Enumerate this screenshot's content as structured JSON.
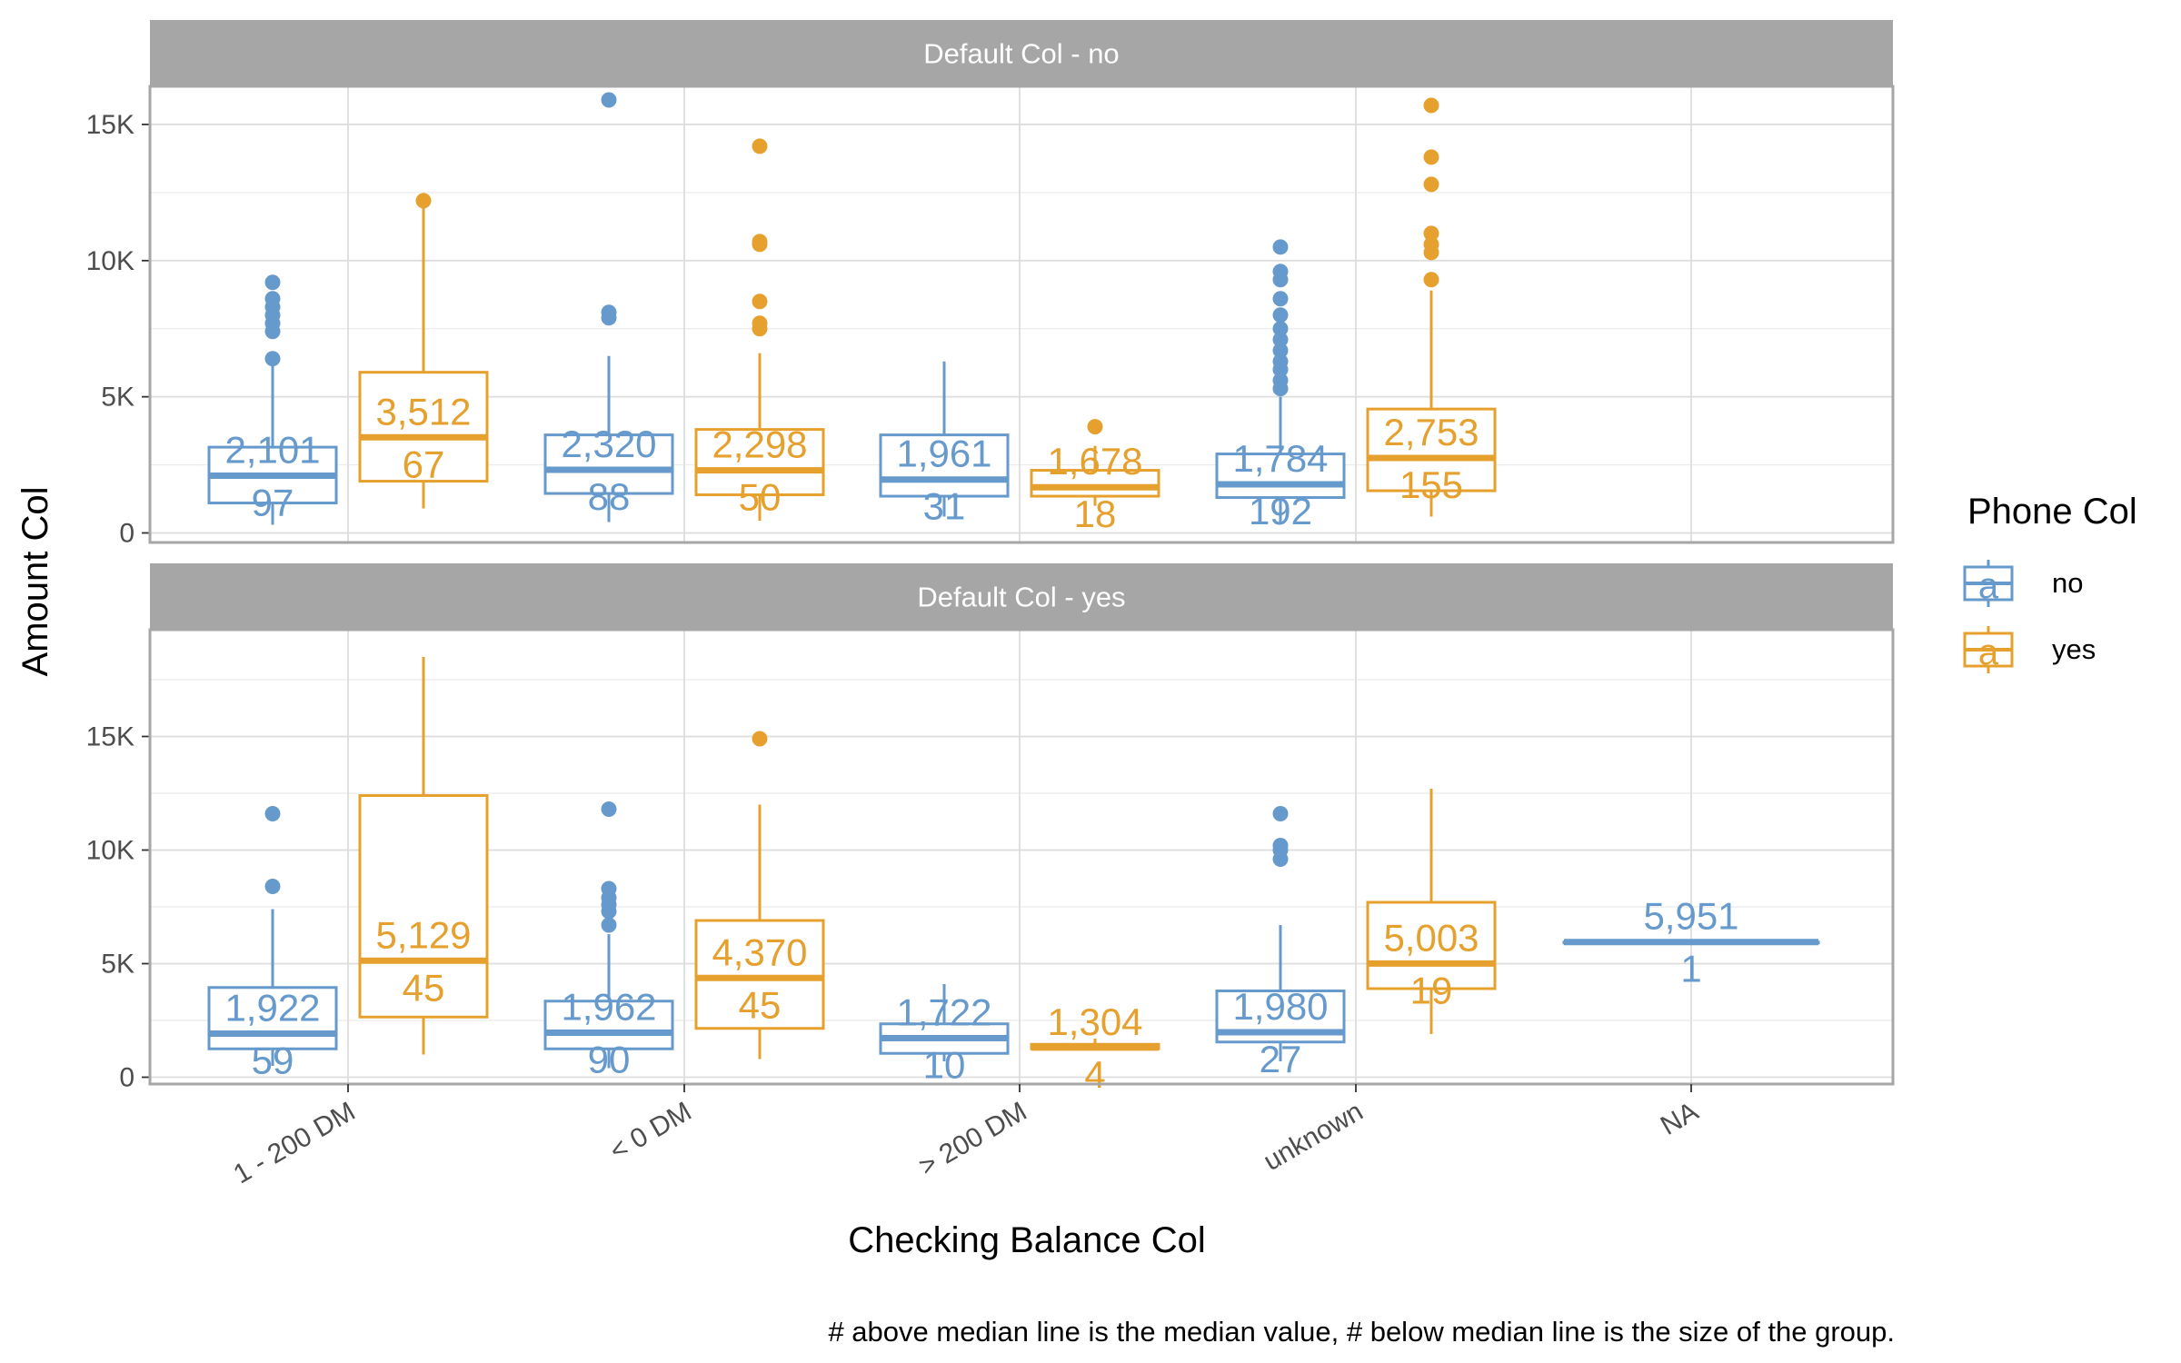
{
  "colors": {
    "no": "#6699CC",
    "yes": "#E6A02E",
    "strip_bg": "#A6A6A6",
    "panel_border": "#A6A6A6",
    "grid": "#DDDDDD"
  },
  "chart_data": {
    "type": "boxplot",
    "xlabel": "Checking Balance Col",
    "ylabel": "Amount Col",
    "categories": [
      "1 - 200 DM",
      "< 0 DM",
      "> 200 DM",
      "unknown",
      "NA"
    ],
    "y_ticks": [
      0,
      5000,
      10000,
      15000
    ],
    "y_tick_labels": [
      "0",
      "5K",
      "10K",
      "15K"
    ],
    "legend": {
      "title": "Phone Col",
      "position": "right",
      "entries": [
        "no",
        "yes"
      ],
      "key_glyph": "a"
    },
    "caption": "# above median line is the median value, # below median line is the size of the group.",
    "facets": [
      {
        "title": "Default Col - no",
        "ylim": [
          -350,
          16400
        ],
        "groups": [
          {
            "category": "1 - 200 DM",
            "phone": "no",
            "whisker_low": 300,
            "q1": 1100,
            "median": 2101,
            "q3": 3150,
            "whisker_high": 6200,
            "outliers": [
              6400,
              7400,
              7700,
              8000,
              8300,
              8600,
              9200
            ],
            "median_label": "2,101",
            "n_label": "97"
          },
          {
            "category": "1 - 200 DM",
            "phone": "yes",
            "whisker_low": 900,
            "q1": 1900,
            "median": 3512,
            "q3": 5900,
            "whisker_high": 12200,
            "outliers": [
              12200
            ],
            "median_label": "3,512",
            "n_label": "67"
          },
          {
            "category": "< 0 DM",
            "phone": "no",
            "whisker_low": 400,
            "q1": 1450,
            "median": 2320,
            "q3": 3600,
            "whisker_high": 6500,
            "outliers": [
              7900,
              8100,
              15900
            ],
            "median_label": "2,320",
            "n_label": "88"
          },
          {
            "category": "< 0 DM",
            "phone": "yes",
            "whisker_low": 450,
            "q1": 1400,
            "median": 2298,
            "q3": 3800,
            "whisker_high": 6600,
            "outliers": [
              7500,
              7700,
              8500,
              10600,
              10700,
              14200
            ],
            "median_label": "2,298",
            "n_label": "50"
          },
          {
            "category": "> 200 DM",
            "phone": "no",
            "whisker_low": 600,
            "q1": 1350,
            "median": 1961,
            "q3": 3600,
            "whisker_high": 6300,
            "outliers": [],
            "median_label": "1,961",
            "n_label": "31"
          },
          {
            "category": "> 200 DM",
            "phone": "yes",
            "whisker_low": 1000,
            "q1": 1350,
            "median": 1678,
            "q3": 2300,
            "whisker_high": 3200,
            "outliers": [
              3900
            ],
            "median_label": "1,678",
            "n_label": "18"
          },
          {
            "category": "unknown",
            "phone": "no",
            "whisker_low": 350,
            "q1": 1300,
            "median": 1784,
            "q3": 2900,
            "whisker_high": 5000,
            "outliers": [
              5300,
              5600,
              6000,
              6300,
              6700,
              7100,
              7500,
              8000,
              8600,
              9300,
              9600,
              10500
            ],
            "median_label": "1,784",
            "n_label": "192"
          },
          {
            "category": "unknown",
            "phone": "yes",
            "whisker_low": 600,
            "q1": 1550,
            "median": 2753,
            "q3": 4550,
            "whisker_high": 8900,
            "outliers": [
              9300,
              10300,
              10600,
              11000,
              12800,
              13800,
              15700
            ],
            "median_label": "2,753",
            "n_label": "155"
          }
        ]
      },
      {
        "title": "Default Col - yes",
        "ylim": [
          -300,
          19700
        ],
        "groups": [
          {
            "category": "1 - 200 DM",
            "phone": "no",
            "whisker_low": 500,
            "q1": 1250,
            "median": 1922,
            "q3": 3950,
            "whisker_high": 7400,
            "outliers": [
              8400,
              11600
            ],
            "median_label": "1,922",
            "n_label": "59"
          },
          {
            "category": "1 - 200 DM",
            "phone": "yes",
            "whisker_low": 1000,
            "q1": 2650,
            "median": 5129,
            "q3": 12400,
            "whisker_high": 18500,
            "outliers": [],
            "median_label": "5,129",
            "n_label": "45"
          },
          {
            "category": "< 0 DM",
            "phone": "no",
            "whisker_low": 400,
            "q1": 1250,
            "median": 1962,
            "q3": 3350,
            "whisker_high": 6300,
            "outliers": [
              6700,
              7300,
              7600,
              7900,
              8300,
              11800
            ],
            "median_label": "1,962",
            "n_label": "90"
          },
          {
            "category": "< 0 DM",
            "phone": "yes",
            "whisker_low": 800,
            "q1": 2150,
            "median": 4370,
            "q3": 6900,
            "whisker_high": 12000,
            "outliers": [
              14900
            ],
            "median_label": "4,370",
            "n_label": "45"
          },
          {
            "category": "> 200 DM",
            "phone": "no",
            "whisker_low": 700,
            "q1": 1050,
            "median": 1722,
            "q3": 2350,
            "whisker_high": 4100,
            "outliers": [],
            "median_label": "1,722",
            "n_label": "10"
          },
          {
            "category": "> 200 DM",
            "phone": "yes",
            "whisker_low": 1200,
            "q1": 1250,
            "median": 1304,
            "q3": 1450,
            "whisker_high": 1700,
            "outliers": [],
            "median_label": "1,304",
            "n_label": "4"
          },
          {
            "category": "unknown",
            "phone": "no",
            "whisker_low": 700,
            "q1": 1550,
            "median": 1980,
            "q3": 3800,
            "whisker_high": 6700,
            "outliers": [
              9600,
              10000,
              10200,
              11600
            ],
            "median_label": "1,980",
            "n_label": "27"
          },
          {
            "category": "unknown",
            "phone": "yes",
            "whisker_low": 1900,
            "q1": 3900,
            "median": 5003,
            "q3": 7700,
            "whisker_high": 12700,
            "outliers": [],
            "median_label": "5,003",
            "n_label": "19"
          },
          {
            "category": "NA",
            "phone": "no",
            "whisker_low": 5951,
            "q1": 5951,
            "median": 5951,
            "q3": 5951,
            "whisker_high": 5951,
            "outliers": [],
            "median_label": "5,951",
            "n_label": "1"
          }
        ]
      }
    ]
  }
}
